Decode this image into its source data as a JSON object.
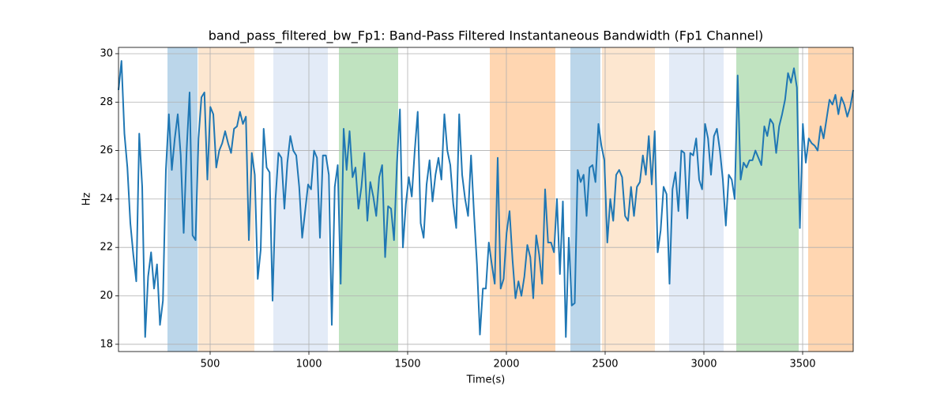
{
  "chart_data": {
    "type": "line",
    "title": "band_pass_filtered_bw_Fp1: Band-Pass Filtered Instantaneous Bandwidth (Fp1 Channel)",
    "x_label": "Time(s)",
    "y_label": "Hz",
    "xlim": [
      36,
      3756
    ],
    "ylim": [
      17.7,
      30.26
    ],
    "xticks": [
      500,
      1000,
      1500,
      2000,
      2500,
      3000,
      3500
    ],
    "yticks": [
      18,
      20,
      22,
      24,
      26,
      28,
      30
    ],
    "grid": true,
    "spans": [
      {
        "x": [
          284,
          436
        ],
        "color": "#bbd6ea"
      },
      {
        "x": [
          440,
          724
        ],
        "color": "#fde7d0"
      },
      {
        "x": [
          820,
          1096
        ],
        "color": "#e3ebf7"
      },
      {
        "x": [
          1152,
          1452
        ],
        "color": "#c0e3c0"
      },
      {
        "x": [
          1916,
          2248
        ],
        "color": "#ffd6b1"
      },
      {
        "x": [
          2324,
          2476
        ],
        "color": "#bbd6ea"
      },
      {
        "x": [
          2484,
          2752
        ],
        "color": "#fde7d0"
      },
      {
        "x": [
          2824,
          3100
        ],
        "color": "#e3ebf7"
      },
      {
        "x": [
          3164,
          3480
        ],
        "color": "#c0e3c0"
      },
      {
        "x": [
          3528,
          3756
        ],
        "color": "#ffd6b1"
      }
    ],
    "series": [
      {
        "color": "#1f77b4",
        "x": [
          36,
          51,
          66,
          81,
          96,
          111,
          126,
          141,
          156,
          171,
          186,
          201,
          216,
          231,
          246,
          261,
          276,
          291,
          306,
          321,
          336,
          351,
          366,
          381,
          396,
          411,
          426,
          441,
          456,
          471,
          486,
          501,
          516,
          531,
          546,
          561,
          576,
          591,
          606,
          621,
          636,
          651,
          666,
          681,
          696,
          711,
          726,
          741,
          756,
          771,
          786,
          801,
          816,
          831,
          846,
          861,
          876,
          891,
          906,
          921,
          936,
          951,
          966,
          981,
          996,
          1011,
          1026,
          1041,
          1056,
          1071,
          1086,
          1101,
          1116,
          1131,
          1146,
          1161,
          1176,
          1191,
          1206,
          1221,
          1236,
          1251,
          1266,
          1281,
          1296,
          1311,
          1326,
          1341,
          1356,
          1371,
          1386,
          1401,
          1416,
          1431,
          1446,
          1461,
          1476,
          1491,
          1506,
          1521,
          1536,
          1551,
          1566,
          1581,
          1596,
          1611,
          1626,
          1641,
          1656,
          1671,
          1686,
          1701,
          1716,
          1731,
          1746,
          1761,
          1776,
          1791,
          1806,
          1821,
          1836,
          1851,
          1866,
          1881,
          1896,
          1911,
          1926,
          1941,
          1956,
          1971,
          1986,
          2001,
          2016,
          2031,
          2046,
          2061,
          2076,
          2091,
          2106,
          2121,
          2136,
          2151,
          2166,
          2181,
          2196,
          2211,
          2226,
          2241,
          2256,
          2271,
          2286,
          2301,
          2316,
          2331,
          2346,
          2361,
          2376,
          2391,
          2406,
          2421,
          2436,
          2451,
          2466,
          2481,
          2496,
          2511,
          2526,
          2541,
          2556,
          2571,
          2586,
          2601,
          2616,
          2631,
          2646,
          2661,
          2676,
          2691,
          2706,
          2721,
          2736,
          2751,
          2766,
          2781,
          2796,
          2811,
          2826,
          2841,
          2856,
          2871,
          2886,
          2901,
          2916,
          2931,
          2946,
          2961,
          2976,
          2991,
          3006,
          3021,
          3036,
          3051,
          3066,
          3081,
          3096,
          3111,
          3126,
          3141,
          3156,
          3171,
          3186,
          3201,
          3216,
          3231,
          3246,
          3261,
          3276,
          3291,
          3306,
          3321,
          3336,
          3351,
          3366,
          3381,
          3396,
          3411,
          3426,
          3441,
          3456,
          3471,
          3486,
          3501,
          3516,
          3531,
          3546,
          3561,
          3576,
          3591,
          3606,
          3621,
          3636,
          3651,
          3666,
          3681,
          3696,
          3711,
          3726,
          3741,
          3756
        ],
        "values": [
          28.5,
          29.7,
          26.7,
          25.3,
          23.0,
          21.7,
          20.6,
          26.7,
          24.5,
          18.3,
          20.8,
          21.8,
          20.3,
          21.3,
          18.8,
          19.8,
          25.2,
          27.5,
          25.2,
          26.5,
          27.5,
          25.8,
          22.6,
          26.0,
          28.4,
          22.5,
          22.3,
          26.5,
          28.2,
          28.4,
          24.8,
          27.8,
          27.5,
          25.3,
          26.0,
          26.3,
          26.8,
          26.3,
          25.9,
          26.9,
          27.0,
          27.6,
          27.1,
          27.4,
          22.3,
          25.9,
          25.0,
          20.7,
          21.9,
          26.9,
          25.3,
          25.1,
          19.8,
          24.0,
          25.9,
          25.7,
          23.6,
          25.5,
          26.6,
          26.0,
          25.8,
          24.5,
          22.4,
          23.5,
          24.6,
          24.4,
          26.0,
          25.7,
          22.4,
          25.8,
          25.8,
          25.0,
          18.8,
          24.5,
          25.4,
          20.5,
          26.9,
          25.2,
          26.8,
          24.9,
          25.3,
          23.6,
          24.5,
          25.9,
          23.1,
          24.7,
          24.1,
          23.3,
          24.9,
          25.4,
          21.6,
          23.7,
          23.6,
          22.3,
          25.5,
          27.7,
          22.0,
          23.8,
          24.9,
          24.1,
          26.0,
          27.6,
          23.0,
          22.4,
          24.6,
          25.6,
          23.9,
          25.0,
          25.7,
          24.8,
          27.5,
          26.0,
          25.4,
          23.8,
          22.8,
          27.5,
          25.0,
          24.0,
          23.3,
          25.8,
          23.4,
          21.3,
          18.4,
          20.3,
          20.3,
          22.2,
          21.3,
          20.5,
          25.7,
          20.3,
          20.7,
          22.6,
          23.5,
          21.5,
          19.9,
          20.6,
          20.0,
          20.8,
          22.1,
          21.6,
          19.9,
          22.5,
          21.7,
          20.5,
          24.4,
          22.2,
          22.2,
          21.8,
          24.0,
          20.9,
          23.9,
          18.3,
          22.4,
          19.6,
          19.7,
          25.2,
          24.7,
          25.0,
          23.3,
          25.3,
          25.4,
          24.7,
          27.1,
          26.2,
          25.6,
          22.2,
          24.0,
          23.1,
          25.0,
          25.2,
          24.9,
          23.3,
          23.1,
          24.5,
          23.3,
          24.5,
          24.7,
          25.8,
          25.0,
          26.6,
          24.6,
          26.8,
          21.8,
          22.7,
          24.5,
          24.2,
          20.5,
          24.4,
          25.1,
          23.5,
          26.0,
          25.9,
          23.2,
          25.9,
          25.8,
          26.5,
          24.8,
          24.4,
          27.1,
          26.5,
          25.0,
          26.6,
          26.9,
          26.0,
          24.8,
          22.9,
          25.0,
          24.8,
          24.0,
          29.1,
          24.8,
          25.5,
          25.3,
          25.6,
          25.6,
          26.0,
          25.7,
          25.4,
          27.0,
          26.6,
          27.3,
          27.1,
          25.9,
          27.0,
          27.5,
          28.1,
          29.2,
          28.8,
          29.4,
          28.6,
          22.8,
          27.1,
          25.5,
          26.5,
          26.3,
          26.2,
          26.0,
          27.0,
          26.5,
          27.3,
          28.1,
          27.9,
          28.3,
          27.5,
          28.2,
          27.9,
          27.4,
          27.8,
          28.5
        ]
      }
    ]
  }
}
